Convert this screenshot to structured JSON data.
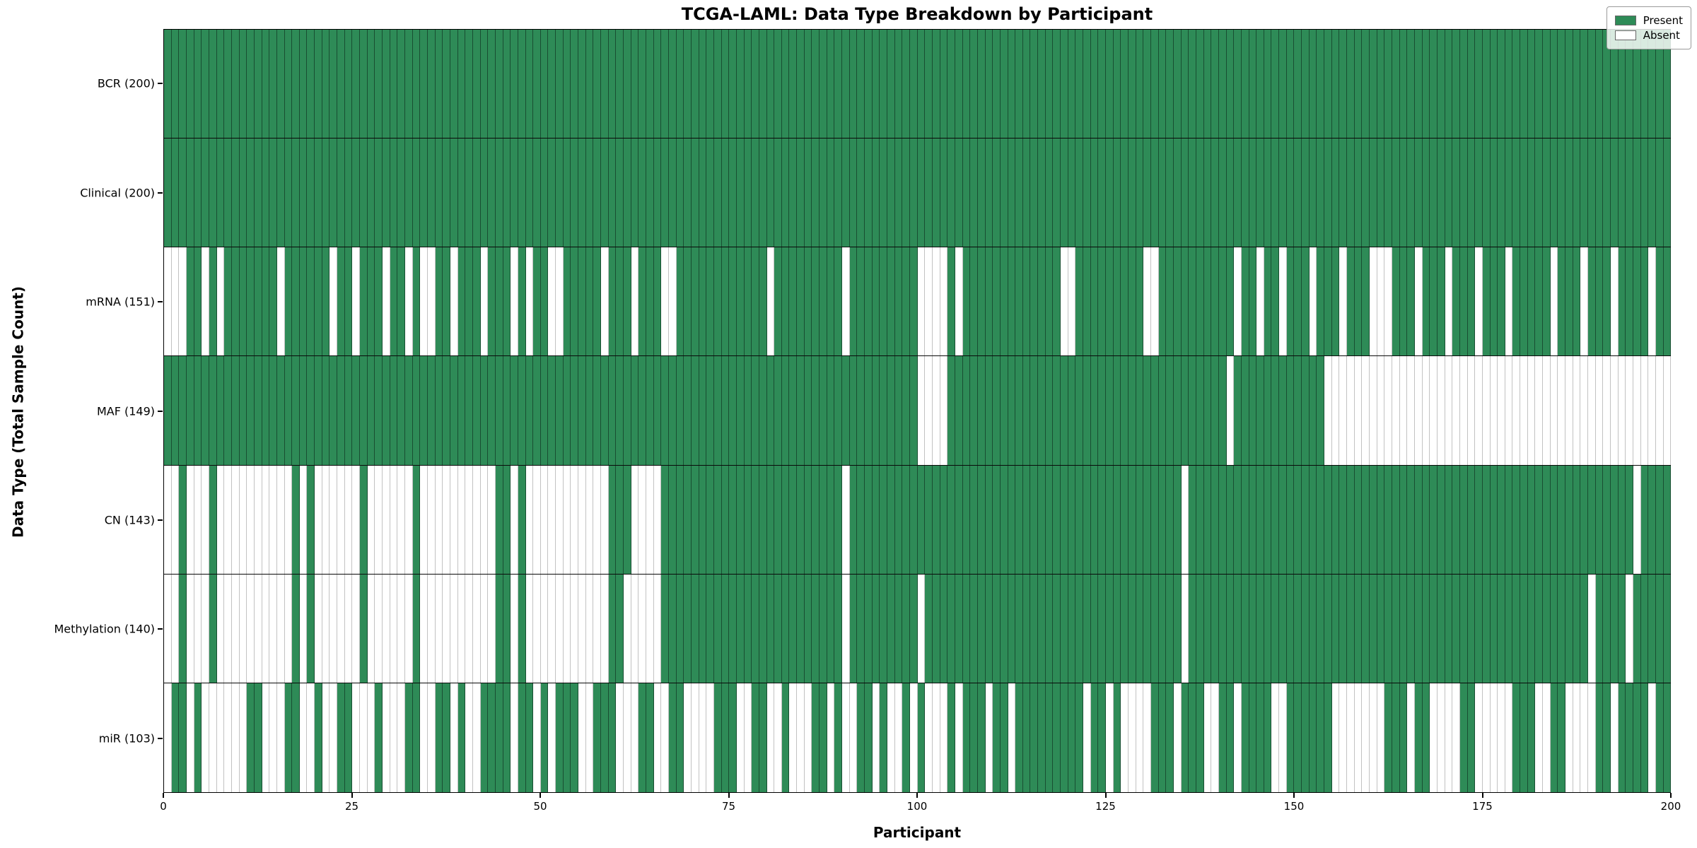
{
  "title": "TCGA-LAML: Data Type Breakdown by Participant",
  "xlabel": "Participant",
  "ylabel": "Data Type (Total Sample Count)",
  "legend": {
    "present_label": "Present",
    "absent_label": "Absent",
    "position": "upper right"
  },
  "colors": {
    "present": "#2e8b57",
    "absent": "#ffffff",
    "present_edge": "rgba(10,30,20,0.55)",
    "absent_edge": "#c2c2c2",
    "row_divider": "#0a0a0a",
    "axis": "#000000",
    "legend_border": "#9a9a9a"
  },
  "chart_data": {
    "type": "heatmap",
    "title": "TCGA-LAML: Data Type Breakdown by Participant",
    "xlabel": "Participant",
    "ylabel": "Data Type (Total Sample Count)",
    "x_range": [
      0,
      200
    ],
    "x_ticks": [
      0,
      25,
      50,
      75,
      100,
      125,
      150,
      175,
      200
    ],
    "n_participants": 200,
    "grid": false,
    "legend_entries": [
      "Present",
      "Absent"
    ],
    "legend_position": "upper right",
    "cell_values": {
      "present": 1,
      "absent": 0
    },
    "rows": [
      {
        "label": "BCR (200)",
        "name": "BCR",
        "total": 200,
        "presence": "11111111111111111111111111111111111111111111111111111111111111111111111111111111111111111111111111111111111111111111111111111111111111111111111111111111111111111111111111111111111111111111111111111111"
      },
      {
        "label": "Clinical (200)",
        "name": "Clinical",
        "total": 200,
        "presence": "11111111111111111111111111111111111111111111111111111111111111111111111111111111111111111111111111111111111111111111111111111111111111111111111111111111111111111111111111111111111111111111111111111111"
      },
      {
        "label": "mRNA (151)",
        "name": "mRNA",
        "total": 151,
        "presence": "00011010111111101111110110111011010011011101110101100111110111011100111111111111011111111101111111110000101111111111111001111111110011111111110110110111011101110001110111011101110111110111011101111011"
      },
      {
        "label": "MAF (149)",
        "name": "MAF",
        "total": 149,
        "presence": "11111111111111111111111111111111111111111111111111111111111111111111111111111111111111111111111111110000111111111111111111111111111111111111101111111111110000000000000000000000000000000000000000000000"
      },
      {
        "label": "CN (143)",
        "name": "CN",
        "total": 143,
        "presence": "00100010000000000101000000100000010000000000110100000000000111000011111111111111111111111101111111111111111111111111111111111111111111101111111111111111111111111111111111111111111111111111111111101111"
      },
      {
        "label": "Methylation (140)",
        "name": "Methylation",
        "total": 140,
        "presence": "00100010000000000101000000100000010000000000110100000000000110000011111111111111111111111101111111110111111111111111111111111111111111101111111111111111111111111111111111111111111111111111101111011111"
      },
      {
        "label": "miR (103)",
        "name": "miR",
        "total": 103,
        "presence": "01101000000110001100100110001000110011010011110110101110011100011001100001110011001000110100110100101000101110110111111111011010000111011100110111100111111000000011101100001100000111001100001101111011"
      }
    ]
  }
}
